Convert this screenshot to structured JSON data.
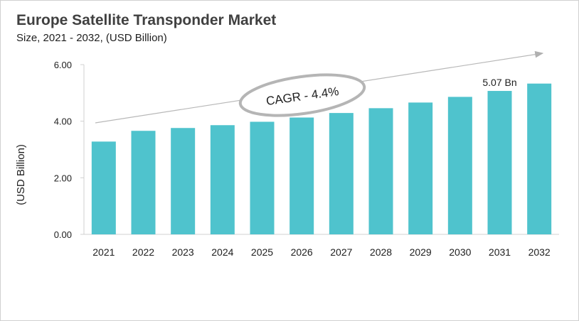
{
  "chart_data": {
    "type": "bar",
    "title": "Europe Satellite Transponder  Market",
    "subtitle": "Size, 2021 - 2032, (USD Billion)",
    "ylabel": "(USD Billion)",
    "xlabel": "",
    "ylim": [
      0,
      6
    ],
    "yticks": [
      "0.00",
      "2.00",
      "4.00",
      "6.00"
    ],
    "categories": [
      "2021",
      "2022",
      "2023",
      "2024",
      "2025",
      "2026",
      "2027",
      "2028",
      "2029",
      "2030",
      "2031",
      "2032"
    ],
    "values": [
      3.28,
      3.66,
      3.76,
      3.86,
      3.98,
      4.13,
      4.29,
      4.46,
      4.66,
      4.86,
      5.07,
      5.33
    ],
    "grid": false,
    "bar_color": "#4fc3cd",
    "annotations": {
      "cagr": "CAGR - 4.4%",
      "value_label": "5.07 Bn",
      "value_label_category": "2031"
    }
  }
}
